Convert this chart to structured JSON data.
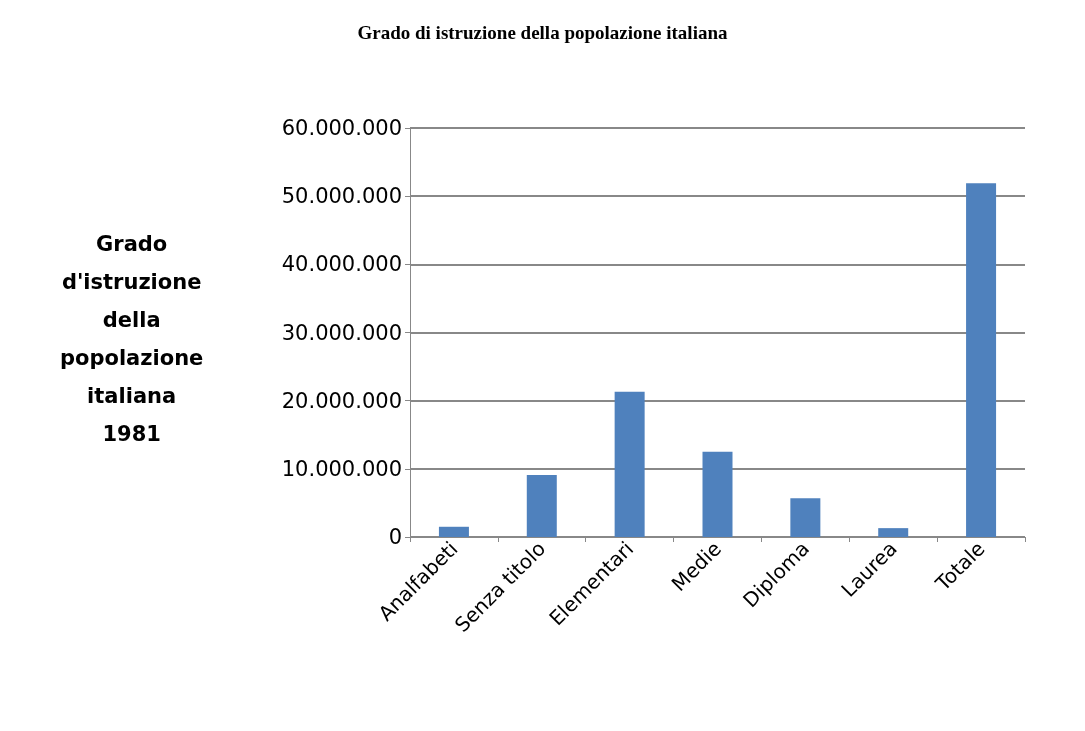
{
  "chart_data": {
    "type": "bar",
    "title": "Grado di istruzione della popolazione italiana",
    "ylabel": "Grado\nd'istruzione\ndella\npopolazione\nitaliana\n1981",
    "categories": [
      "Analfabeti",
      "Senza titolo",
      "Elementari",
      "Medie",
      "Diploma",
      "Laurea",
      "Totale"
    ],
    "values": [
      1500000,
      9100000,
      21300000,
      12500000,
      5700000,
      1300000,
      51900000
    ],
    "color": "#4f81bd",
    "ylim": [
      0,
      60000000
    ],
    "yticks": [
      {
        "value": 0,
        "label": "0"
      },
      {
        "value": 10000000,
        "label": "10.000.000"
      },
      {
        "value": 20000000,
        "label": "20.000.000"
      },
      {
        "value": 30000000,
        "label": "30.000.000"
      },
      {
        "value": 40000000,
        "label": "40.000.000"
      },
      {
        "value": 50000000,
        "label": "50.000.000"
      },
      {
        "value": 60000000,
        "label": "60.000.000"
      }
    ],
    "grid": "y"
  }
}
